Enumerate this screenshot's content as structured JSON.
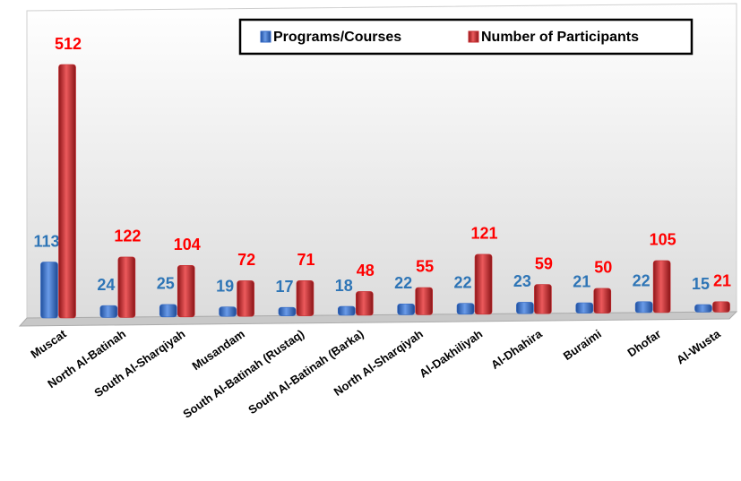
{
  "chart_data": {
    "type": "bar",
    "categories": [
      "Muscat",
      "North Al-Batinah",
      "South Al-Sharqiyah",
      "Musandam",
      "South Al-Batinah (Rustaq)",
      "South Al-Batinah (Barka)",
      "North Al-Sharqiyah",
      "Al-Dakhiliyah",
      "Al-Dhahira",
      "Buraimi",
      "Dhofar",
      "Al-Wusta"
    ],
    "series": [
      {
        "name": "Programs/Courses",
        "color": "#2f66c4",
        "values": [
          113,
          24,
          25,
          19,
          17,
          18,
          22,
          22,
          23,
          21,
          22,
          15
        ]
      },
      {
        "name": "Number of Participants",
        "color": "#c62a2e",
        "values": [
          512,
          122,
          104,
          72,
          71,
          48,
          55,
          121,
          59,
          50,
          105,
          21
        ]
      }
    ],
    "legend": "top-right"
  }
}
